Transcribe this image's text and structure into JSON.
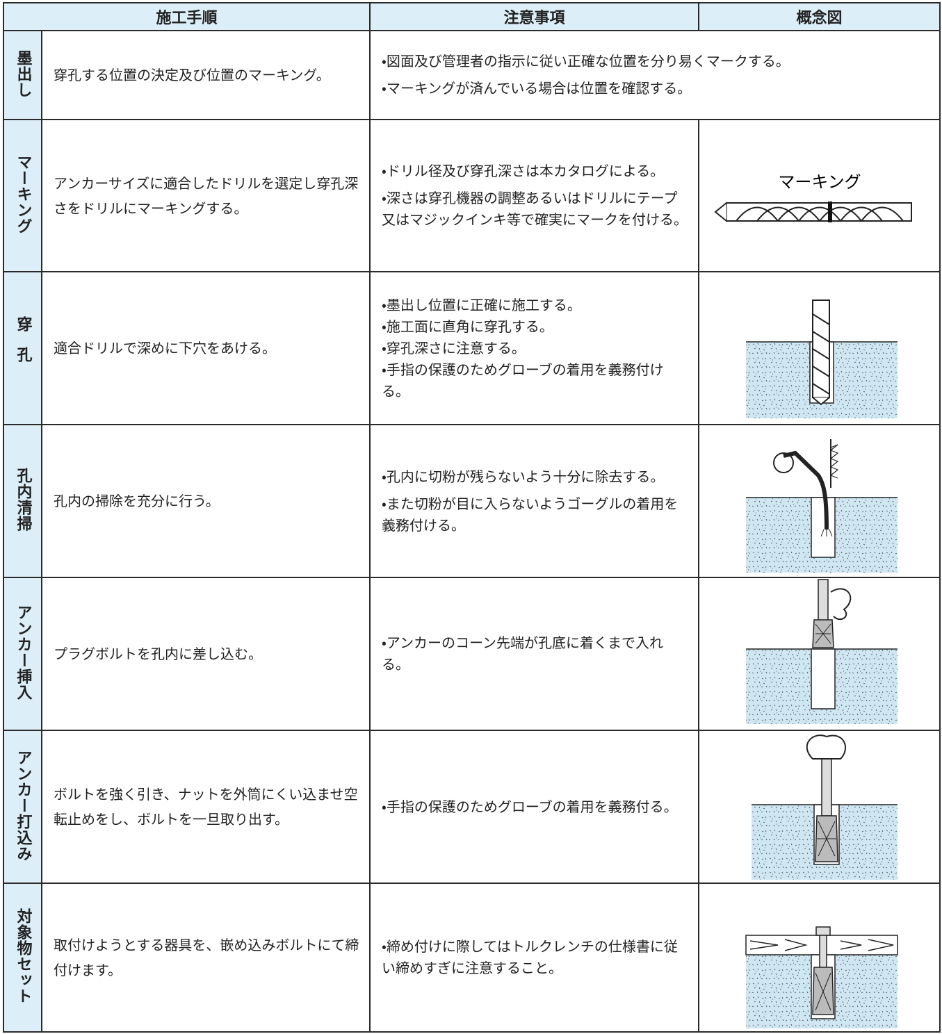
{
  "header": {
    "columns": [
      "施工手順",
      "注意事項",
      "概念図"
    ]
  },
  "rows": [
    {
      "step": "墨出し",
      "description": "穿孔する位置の決定及び位置のマーキング。",
      "notes": [
        "・図面及び管理者の指示に従い正確な位置を分り易くマークする。",
        "・マーキングが済んでいる場合は位置を確認する。"
      ]
    },
    {
      "step": "マーキング",
      "description": "アンカーサイズに適合したドリルを選定し穿孔深さをドリルにマーキングする。",
      "notes": [
        "・ドリル径及び穿孔深さは本カタログによる。",
        "・深さは穿孔機器の調整あるいはドリルにテープ又はマジックインキ等で確実にマークを付ける。"
      ],
      "figure_label": "マーキング"
    },
    {
      "step": "穿孔",
      "description": "適合ドリルで深めに下穴をあける。",
      "notes": [
        "・墨出し位置に正確に施工する。",
        "・施工面に直角に穿孔する。",
        "・穿孔深さに注意する。",
        "・手指の保護のためグローブの着用を義務付ける。"
      ]
    },
    {
      "step": "孔内清掃",
      "description": "孔内の掃除を充分に行う。",
      "notes": [
        "・孔内に切粉が残らないよう十分に除去する。",
        "・また切粉が目に入らないようゴーグルの着用を義務付ける。"
      ]
    },
    {
      "step": "アンカー挿入",
      "description": "プラグボルトを孔内に差し込む。",
      "notes": [
        "・アンカーのコーン先端が孔底に着くまで入れる。"
      ]
    },
    {
      "step": "アンカー打込み",
      "description": "ボルトを強く引き、ナットを外筒にくい込ませ空転止めをし、ボルトを一旦取り出す。",
      "notes": [
        "・手指の保護のためグローブの着用を義務付る。"
      ]
    },
    {
      "step": "対象物セット",
      "description": "取付けようとする器具を、嵌め込みボルトにて締付けます。",
      "notes": [
        "・締め付けに際してはトルクレンチの仕様書に従い締めすぎに注意すること。"
      ]
    }
  ]
}
